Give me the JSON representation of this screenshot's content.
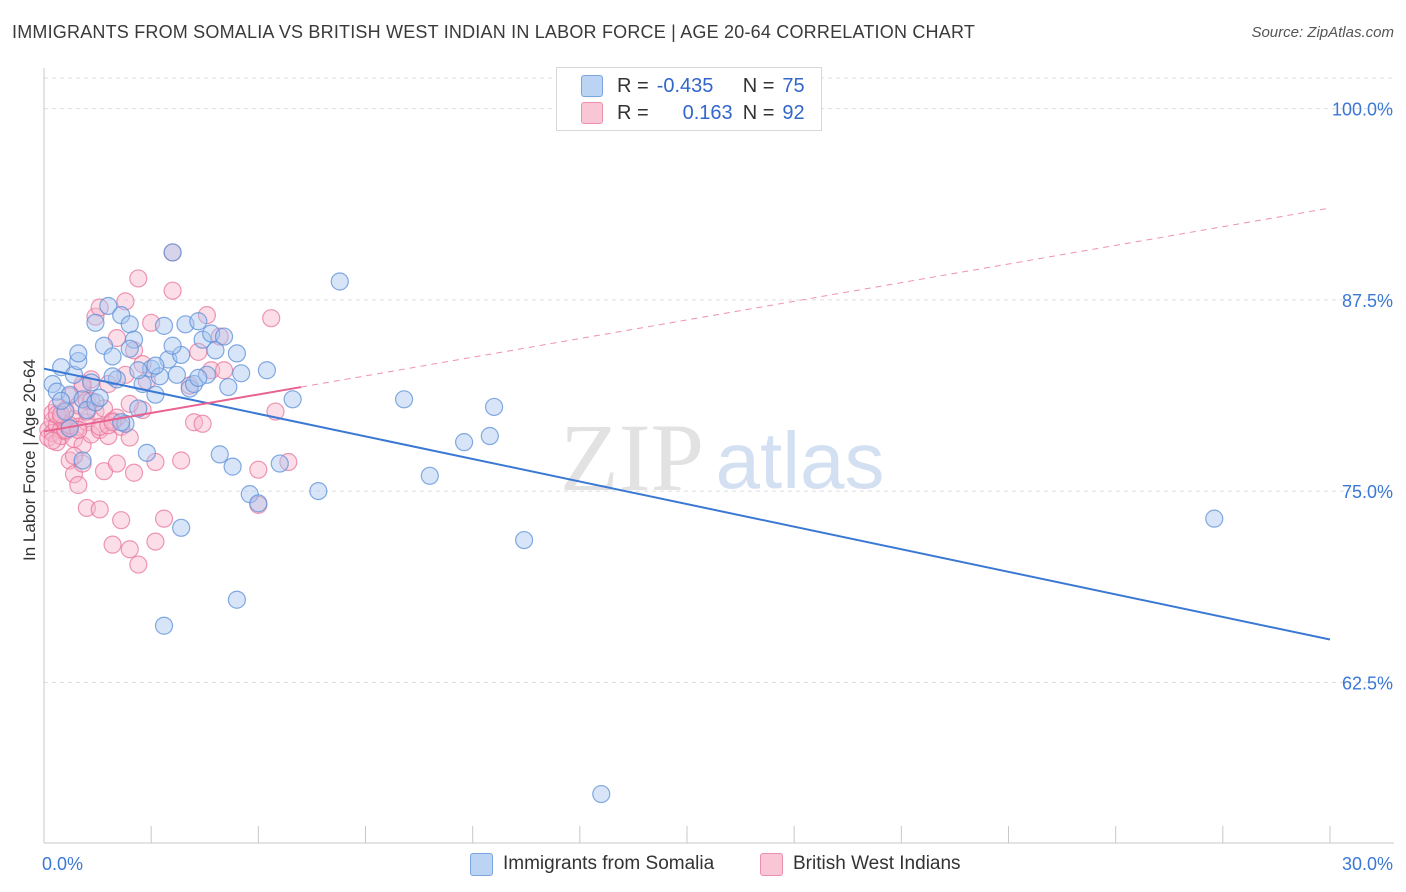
{
  "title": "IMMIGRANTS FROM SOMALIA VS BRITISH WEST INDIAN IN LABOR FORCE | AGE 20-64 CORRELATION CHART",
  "source": "Source: ZipAtlas.com",
  "watermark": {
    "zip": "ZIP",
    "atlas": "atlas"
  },
  "legend_top": {
    "rows": [
      {
        "r_label": "R =",
        "r_value": "-0.435",
        "n_label": "N =",
        "n_value": "75"
      },
      {
        "r_label": "R =",
        "r_value": "0.163",
        "n_label": "N =",
        "n_value": "92"
      }
    ]
  },
  "legend_bottom": {
    "items": [
      {
        "label": "Immigrants from Somalia"
      },
      {
        "label": "British West Indians"
      }
    ]
  },
  "colors": {
    "blue_fill": "#a9c6ef",
    "blue_stroke": "#5b8fd8",
    "blue_line": "#3a78d4",
    "pink_fill": "#f6b6cb",
    "pink_stroke": "#e8769c",
    "pink_line": "#e8628f",
    "grid": "#dddddd",
    "tick_label": "#3a78d4",
    "axis_text": "#333333"
  },
  "chart_data": {
    "type": "scatter",
    "title": "IMMIGRANTS FROM SOMALIA VS BRITISH WEST INDIAN IN LABOR FORCE | AGE 20-64 CORRELATION CHART",
    "xlabel": "",
    "ylabel": "In Labor Force | Age 20-64",
    "xlim": [
      0.0,
      30.0
    ],
    "ylim": [
      52.0,
      102.0
    ],
    "x_tick_labels": [
      "0.0%",
      "30.0%"
    ],
    "y_ticks": [
      62.5,
      75.0,
      87.5,
      100.0
    ],
    "y_tick_labels": [
      "62.5%",
      "75.0%",
      "87.5%",
      "100.0%"
    ],
    "grid": true,
    "series": [
      {
        "name": "Immigrants from Somalia",
        "r": -0.435,
        "n": 75,
        "trend": {
          "x": [
            0.0,
            30.0
          ],
          "y": [
            83.0,
            65.3
          ],
          "dashed_extension": false
        },
        "points": [
          [
            0.2,
            82.0
          ],
          [
            0.3,
            81.5
          ],
          [
            0.4,
            83.1
          ],
          [
            0.5,
            80.2
          ],
          [
            0.6,
            81.3
          ],
          [
            0.6,
            79.1
          ],
          [
            0.7,
            82.6
          ],
          [
            0.8,
            83.5
          ],
          [
            0.9,
            81.0
          ],
          [
            1.0,
            80.3
          ],
          [
            1.1,
            82.1
          ],
          [
            1.2,
            80.8
          ],
          [
            1.3,
            81.1
          ],
          [
            1.4,
            84.5
          ],
          [
            1.5,
            87.1
          ],
          [
            1.6,
            83.8
          ],
          [
            1.7,
            82.3
          ],
          [
            1.8,
            86.5
          ],
          [
            1.9,
            79.4
          ],
          [
            2.0,
            85.9
          ],
          [
            2.1,
            84.9
          ],
          [
            2.2,
            80.4
          ],
          [
            2.3,
            82.0
          ],
          [
            2.4,
            77.5
          ],
          [
            2.5,
            83.0
          ],
          [
            2.6,
            81.3
          ],
          [
            2.7,
            82.5
          ],
          [
            2.8,
            85.8
          ],
          [
            2.9,
            83.6
          ],
          [
            3.0,
            90.6
          ],
          [
            3.1,
            82.6
          ],
          [
            3.2,
            83.9
          ],
          [
            3.3,
            85.9
          ],
          [
            3.4,
            81.7
          ],
          [
            3.5,
            82.0
          ],
          [
            3.6,
            86.1
          ],
          [
            3.7,
            84.9
          ],
          [
            3.8,
            82.6
          ],
          [
            3.9,
            85.3
          ],
          [
            4.0,
            84.2
          ],
          [
            4.1,
            77.4
          ],
          [
            4.2,
            85.1
          ],
          [
            4.3,
            81.8
          ],
          [
            4.4,
            76.6
          ],
          [
            4.5,
            84.0
          ],
          [
            4.6,
            82.7
          ],
          [
            4.8,
            74.8
          ],
          [
            5.0,
            74.2
          ],
          [
            5.2,
            82.9
          ],
          [
            5.5,
            76.8
          ],
          [
            5.8,
            81.0
          ],
          [
            6.4,
            75.0
          ],
          [
            6.9,
            88.7
          ],
          [
            8.4,
            81.0
          ],
          [
            9.0,
            76.0
          ],
          [
            9.8,
            78.2
          ],
          [
            10.4,
            78.6
          ],
          [
            10.5,
            80.5
          ],
          [
            11.2,
            71.8
          ],
          [
            13.0,
            55.2
          ],
          [
            27.3,
            73.2
          ],
          [
            3.2,
            72.6
          ],
          [
            4.5,
            67.9
          ],
          [
            2.8,
            66.2
          ],
          [
            0.9,
            77.0
          ],
          [
            1.6,
            82.5
          ],
          [
            2.0,
            84.3
          ],
          [
            2.6,
            83.2
          ],
          [
            3.6,
            82.4
          ],
          [
            0.4,
            80.9
          ],
          [
            0.8,
            84.0
          ],
          [
            1.2,
            86.0
          ],
          [
            2.2,
            82.9
          ],
          [
            3.0,
            84.5
          ],
          [
            1.8,
            79.5
          ]
        ]
      },
      {
        "name": "British West Indians",
        "r": 0.163,
        "n": 92,
        "trend": {
          "x": [
            0.0,
            6.0
          ],
          "y": [
            78.9,
            81.8
          ],
          "dashed_extension": {
            "x": [
              6.0,
              30.0
            ],
            "y": [
              81.8,
              93.5
            ]
          }
        },
        "points": [
          [
            0.1,
            79.0
          ],
          [
            0.1,
            78.5
          ],
          [
            0.2,
            79.6
          ],
          [
            0.2,
            80.1
          ],
          [
            0.2,
            78.8
          ],
          [
            0.3,
            79.3
          ],
          [
            0.3,
            78.2
          ],
          [
            0.3,
            80.5
          ],
          [
            0.4,
            79.0
          ],
          [
            0.4,
            79.8
          ],
          [
            0.4,
            78.6
          ],
          [
            0.5,
            79.4
          ],
          [
            0.5,
            80.3
          ],
          [
            0.5,
            78.9
          ],
          [
            0.6,
            79.1
          ],
          [
            0.6,
            77.0
          ],
          [
            0.6,
            81.2
          ],
          [
            0.7,
            78.4
          ],
          [
            0.7,
            79.7
          ],
          [
            0.7,
            76.1
          ],
          [
            0.8,
            79.2
          ],
          [
            0.8,
            75.4
          ],
          [
            0.8,
            80.6
          ],
          [
            0.9,
            78.0
          ],
          [
            0.9,
            81.8
          ],
          [
            0.9,
            76.8
          ],
          [
            1.0,
            79.5
          ],
          [
            1.0,
            73.9
          ],
          [
            1.0,
            80.9
          ],
          [
            1.1,
            82.3
          ],
          [
            1.1,
            78.7
          ],
          [
            1.2,
            86.4
          ],
          [
            1.2,
            80.2
          ],
          [
            1.3,
            87.0
          ],
          [
            1.3,
            73.8
          ],
          [
            1.3,
            79.0
          ],
          [
            1.4,
            76.3
          ],
          [
            1.4,
            80.4
          ],
          [
            1.5,
            82.0
          ],
          [
            1.5,
            78.6
          ],
          [
            1.6,
            71.5
          ],
          [
            1.6,
            79.6
          ],
          [
            1.7,
            76.8
          ],
          [
            1.7,
            85.0
          ],
          [
            1.8,
            73.1
          ],
          [
            1.8,
            79.2
          ],
          [
            1.9,
            87.4
          ],
          [
            1.9,
            82.6
          ],
          [
            2.0,
            71.2
          ],
          [
            2.0,
            78.5
          ],
          [
            2.1,
            84.2
          ],
          [
            2.1,
            76.2
          ],
          [
            2.2,
            88.9
          ],
          [
            2.2,
            70.2
          ],
          [
            2.3,
            83.3
          ],
          [
            2.3,
            80.3
          ],
          [
            2.4,
            82.2
          ],
          [
            2.5,
            86.0
          ],
          [
            2.6,
            71.7
          ],
          [
            2.6,
            76.9
          ],
          [
            2.8,
            73.2
          ],
          [
            3.0,
            90.6
          ],
          [
            3.0,
            88.1
          ],
          [
            3.2,
            77.0
          ],
          [
            3.4,
            81.9
          ],
          [
            3.5,
            79.5
          ],
          [
            3.6,
            84.1
          ],
          [
            3.7,
            79.4
          ],
          [
            3.8,
            86.5
          ],
          [
            3.9,
            82.9
          ],
          [
            4.1,
            85.1
          ],
          [
            4.2,
            82.9
          ],
          [
            5.0,
            74.1
          ],
          [
            5.0,
            76.4
          ],
          [
            5.3,
            86.3
          ],
          [
            5.4,
            80.2
          ],
          [
            5.7,
            76.9
          ],
          [
            0.2,
            78.3
          ],
          [
            0.3,
            80.0
          ],
          [
            0.5,
            79.0
          ],
          [
            0.6,
            79.3
          ],
          [
            0.8,
            79.0
          ],
          [
            1.0,
            80.2
          ],
          [
            1.1,
            80.9
          ],
          [
            1.3,
            79.2
          ],
          [
            1.5,
            79.3
          ],
          [
            1.7,
            79.8
          ],
          [
            0.4,
            80.0
          ],
          [
            0.9,
            82.0
          ],
          [
            2.0,
            80.7
          ],
          [
            0.7,
            77.3
          ],
          [
            1.6,
            79.5
          ]
        ]
      }
    ]
  }
}
